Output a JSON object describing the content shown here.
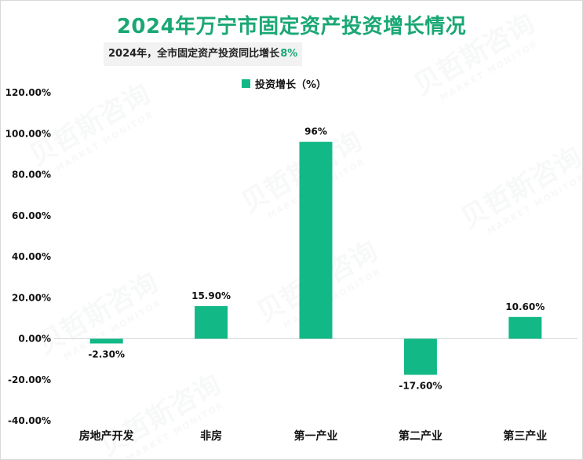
{
  "chart_data": {
    "type": "bar",
    "title": "2024年万宁市固定资产投资增长情况",
    "subtitle": {
      "prefix": "2024年，全市固定资产投资同比增长",
      "highlight": "8%"
    },
    "legend": [
      "投资增长（%）"
    ],
    "categories": [
      "房地产开发",
      "非房",
      "第一产业",
      "第二产业",
      "第三产业"
    ],
    "values": [
      -2.3,
      15.9,
      96,
      -17.6,
      10.6
    ],
    "data_labels": [
      "-2.30%",
      "15.90%",
      "96%",
      "-17.60%",
      "10.60%"
    ],
    "ylim": [
      -40,
      120
    ],
    "yticks": [
      120,
      100,
      80,
      60,
      40,
      20,
      0,
      -20,
      -40
    ],
    "ytick_labels": [
      "120.00%",
      "100.00%",
      "80.00%",
      "60.00%",
      "40.00%",
      "20.00%",
      "0.00%",
      "-20.00%",
      "-40.00%"
    ],
    "xlabel": "",
    "ylabel": "",
    "grid": false,
    "bar_color": "#12b886",
    "title_color": "#1aa774"
  },
  "watermark": {
    "text": "贝哲斯咨询",
    "sub": "MARKET MONITOR"
  }
}
